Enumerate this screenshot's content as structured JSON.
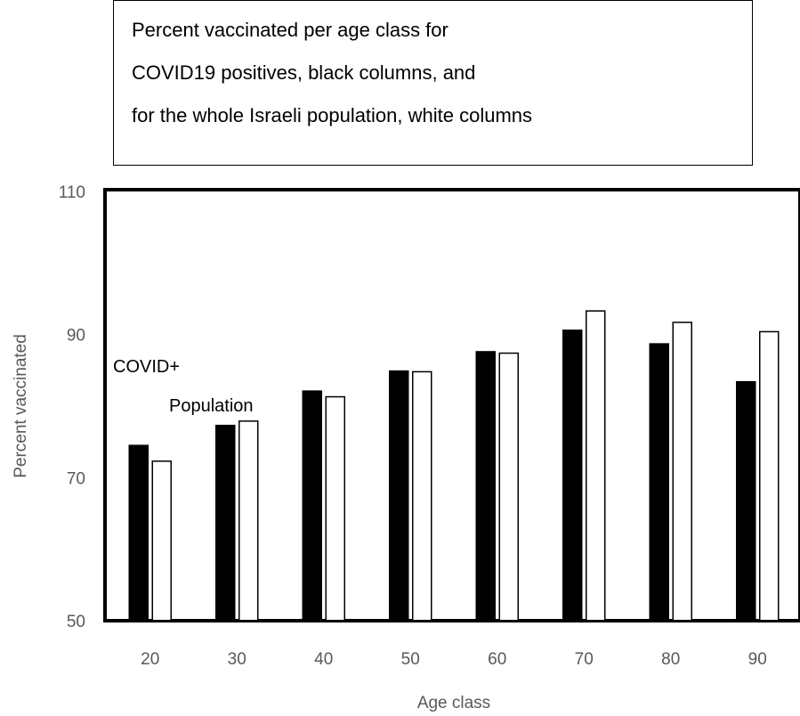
{
  "chart_data": {
    "type": "bar",
    "title": [
      "Percent vaccinated per age class for",
      "COVID19 positives, black columns, and",
      "for the whole Israeli population, white columns"
    ],
    "xlabel": "Age class",
    "ylabel": "Percent vaccinated",
    "categories": [
      "20",
      "30",
      "40",
      "50",
      "60",
      "70",
      "80",
      "90"
    ],
    "ylim": [
      50,
      110
    ],
    "yticks": [
      "50",
      "70",
      "90",
      "110"
    ],
    "grid": false,
    "series": [
      {
        "name": "COVID+",
        "color": "#000000",
        "values": [
          74.5,
          77.3,
          82.1,
          84.9,
          87.6,
          90.6,
          88.7,
          83.4
        ]
      },
      {
        "name": "Population",
        "color": "#ffffff",
        "values": [
          72.3,
          77.9,
          81.3,
          84.8,
          87.4,
          93.3,
          91.7,
          90.4
        ]
      }
    ],
    "annotations": [
      "COVID+",
      "Population"
    ]
  }
}
